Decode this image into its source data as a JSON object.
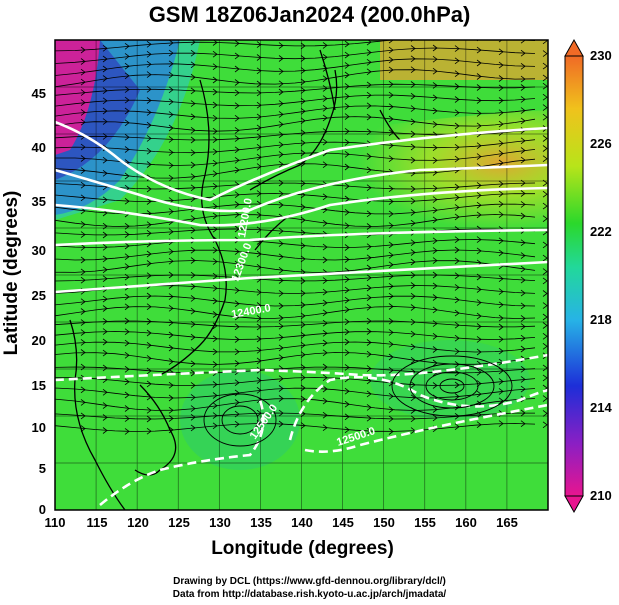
{
  "title": "GSM 18Z06Jan2024 (200.0hPa)",
  "chart_data": {
    "type": "map",
    "xlabel": "Longitude (degrees)",
    "ylabel": "Latitude  (degrees)",
    "xlim": [
      110,
      170
    ],
    "ylim": [
      0,
      50
    ],
    "x_ticks": [
      "110",
      "115",
      "120",
      "125",
      "130",
      "135",
      "140",
      "145",
      "150",
      "155",
      "160",
      "165"
    ],
    "y_ticks": [
      "0",
      "5",
      "10",
      "15",
      "20",
      "25",
      "30",
      "35",
      "40",
      "45"
    ],
    "colorbar": {
      "min": 210,
      "max": 230,
      "ticks": [
        "230",
        "226",
        "222",
        "218",
        "214",
        "210"
      ],
      "colors": [
        "#e8158f",
        "#1d2ed8",
        "#27b3e6",
        "#22d89a",
        "#2bd82b",
        "#b8e41a",
        "#f0c21c",
        "#f06a26"
      ]
    },
    "contours": [
      "12500.0",
      "12500.0",
      "12400.0",
      "12300.0",
      "12200.0"
    ],
    "vortex_center": {
      "lon": 157.5,
      "lat": 15
    }
  },
  "credits": {
    "line1": "Drawing by DCL (https://www.gfd-dennou.org/library/dcl/)",
    "line2": "Data from http://database.rish.kyoto-u.ac.jp/arch/jmadata/"
  }
}
